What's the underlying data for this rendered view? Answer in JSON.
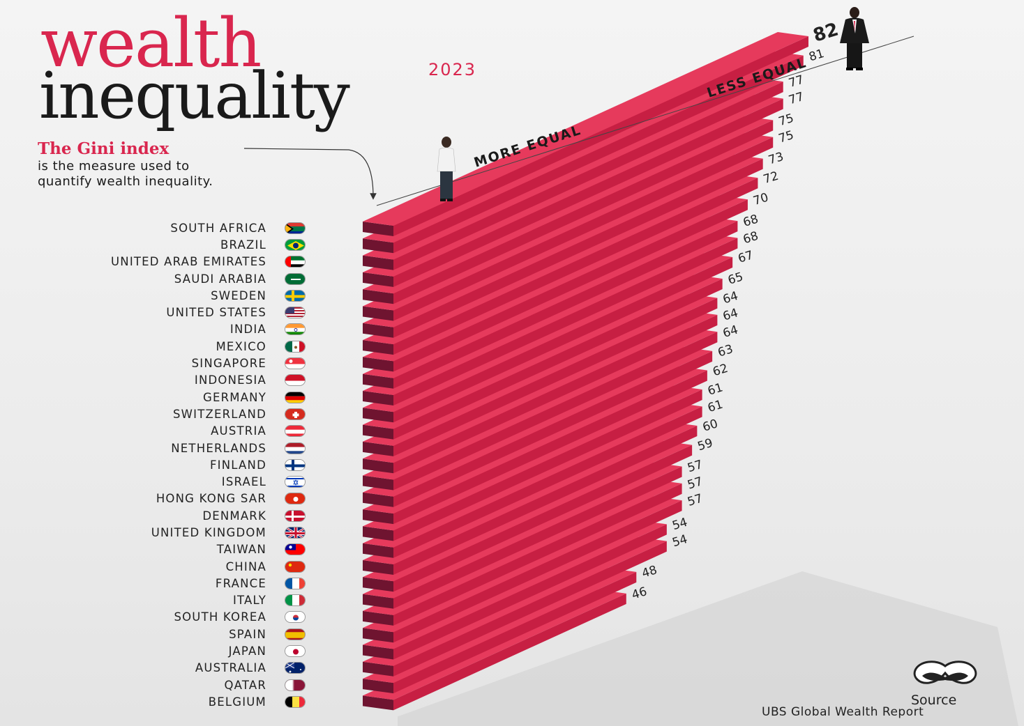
{
  "header": {
    "title_line1": "wealth",
    "title_line2": "inequality",
    "year": "2023",
    "gini_heading": "The Gini index",
    "gini_description": "is the measure used to quantify wealth inequality."
  },
  "labels": {
    "more_equal": "MORE EQUAL",
    "less_equal": "LESS EQUAL"
  },
  "source": {
    "label": "Source",
    "text": "UBS Global Wealth Report"
  },
  "colors": {
    "bar_top": "#e63a5c",
    "bar_front": "#c71f43",
    "bar_side": "#6f1430",
    "accent": "#d9264e"
  },
  "chart_data": {
    "type": "bar",
    "title": "wealth inequality",
    "categories": [
      "SOUTH AFRICA",
      "BRAZIL",
      "UNITED ARAB EMIRATES",
      "SAUDI ARABIA",
      "SWEDEN",
      "UNITED STATES",
      "INDIA",
      "MEXICO",
      "SINGAPORE",
      "INDONESIA",
      "GERMANY",
      "SWITZERLAND",
      "AUSTRIA",
      "NETHERLANDS",
      "FINLAND",
      "ISRAEL",
      "HONG KONG SAR",
      "DENMARK",
      "UNITED KINGDOM",
      "TAIWAN",
      "CHINA",
      "FRANCE",
      "ITALY",
      "SOUTH KOREA",
      "SPAIN",
      "JAPAN",
      "AUSTRALIA",
      "QATAR",
      "BELGIUM"
    ],
    "values": [
      82,
      81,
      77,
      77,
      75,
      75,
      73,
      72,
      70,
      68,
      68,
      67,
      65,
      64,
      64,
      64,
      63,
      62,
      61,
      61,
      60,
      59,
      57,
      57,
      57,
      54,
      54,
      48,
      46
    ],
    "flags": [
      "flag-south-africa",
      "flag-brazil",
      "flag-uae",
      "flag-saudi-arabia",
      "flag-sweden",
      "flag-united-states",
      "flag-india",
      "flag-mexico",
      "flag-singapore",
      "flag-indonesia",
      "flag-germany",
      "flag-switzerland",
      "flag-austria",
      "flag-netherlands",
      "flag-finland",
      "flag-israel",
      "flag-hong-kong",
      "flag-denmark",
      "flag-united-kingdom",
      "flag-taiwan",
      "flag-china",
      "flag-france",
      "flag-italy",
      "flag-south-korea",
      "flag-spain",
      "flag-japan",
      "flag-australia",
      "flag-qatar",
      "flag-belgium"
    ],
    "xlabel": "",
    "ylabel": "",
    "legend": "none",
    "grid": false
  }
}
